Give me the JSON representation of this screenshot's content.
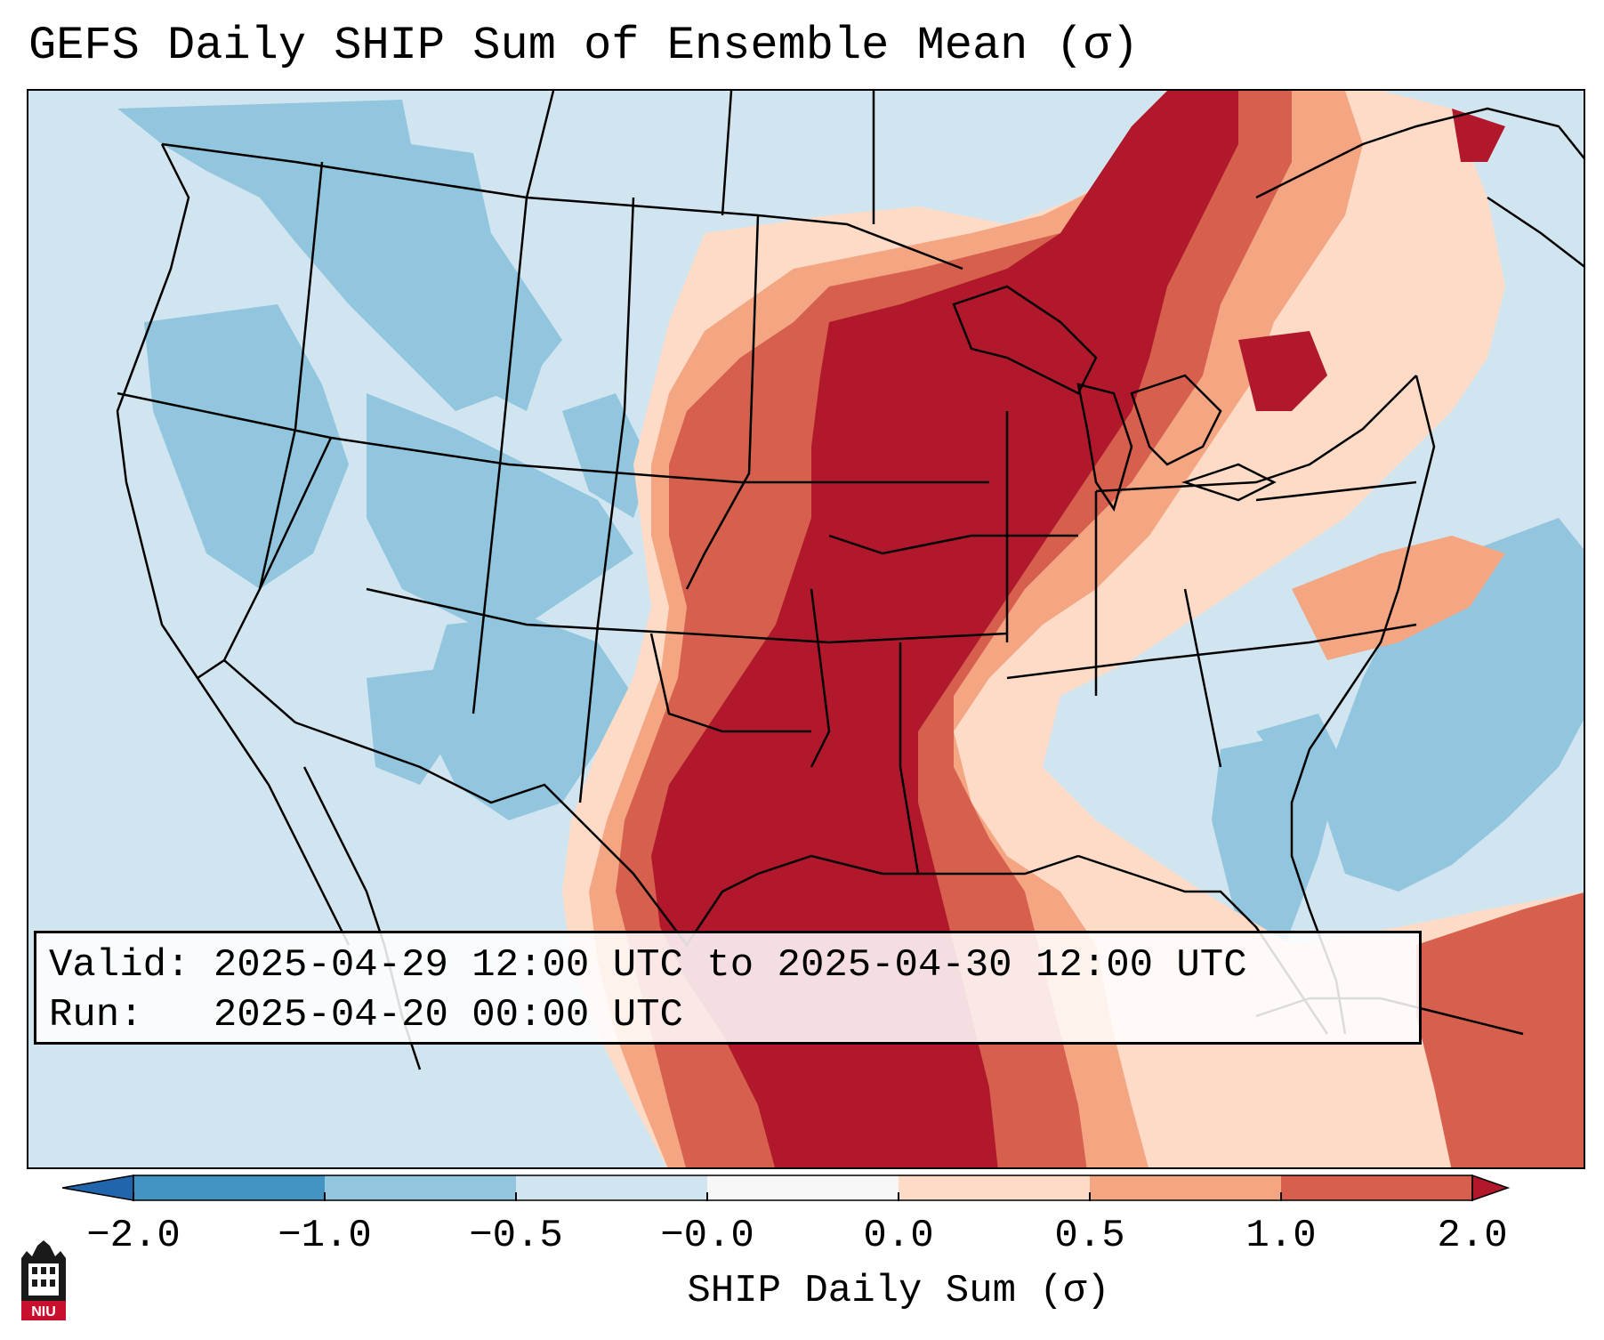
{
  "title": "GEFS Daily SHIP Sum of Ensemble Mean (σ)",
  "info": {
    "valid_line": "Valid: 2025-04-29 12:00 UTC to 2025-04-30 12:00 UTC",
    "run_line": "Run:   2025-04-20 00:00 UTC"
  },
  "colorbar": {
    "label": "SHIP Daily Sum (σ)",
    "ticks": [
      "−2.0",
      "−1.0",
      "−0.5",
      "−0.0",
      "0.0",
      "0.5",
      "1.0",
      "2.0"
    ],
    "colors": [
      "#4393c3",
      "#92c5de",
      "#d1e5f0",
      "#f7f7f7",
      "#fddbc7",
      "#f4a582",
      "#d6604d",
      "#b2182b"
    ],
    "extend": "both"
  },
  "logo": {
    "text": "NIU",
    "icon": "niu-logo-icon"
  }
}
